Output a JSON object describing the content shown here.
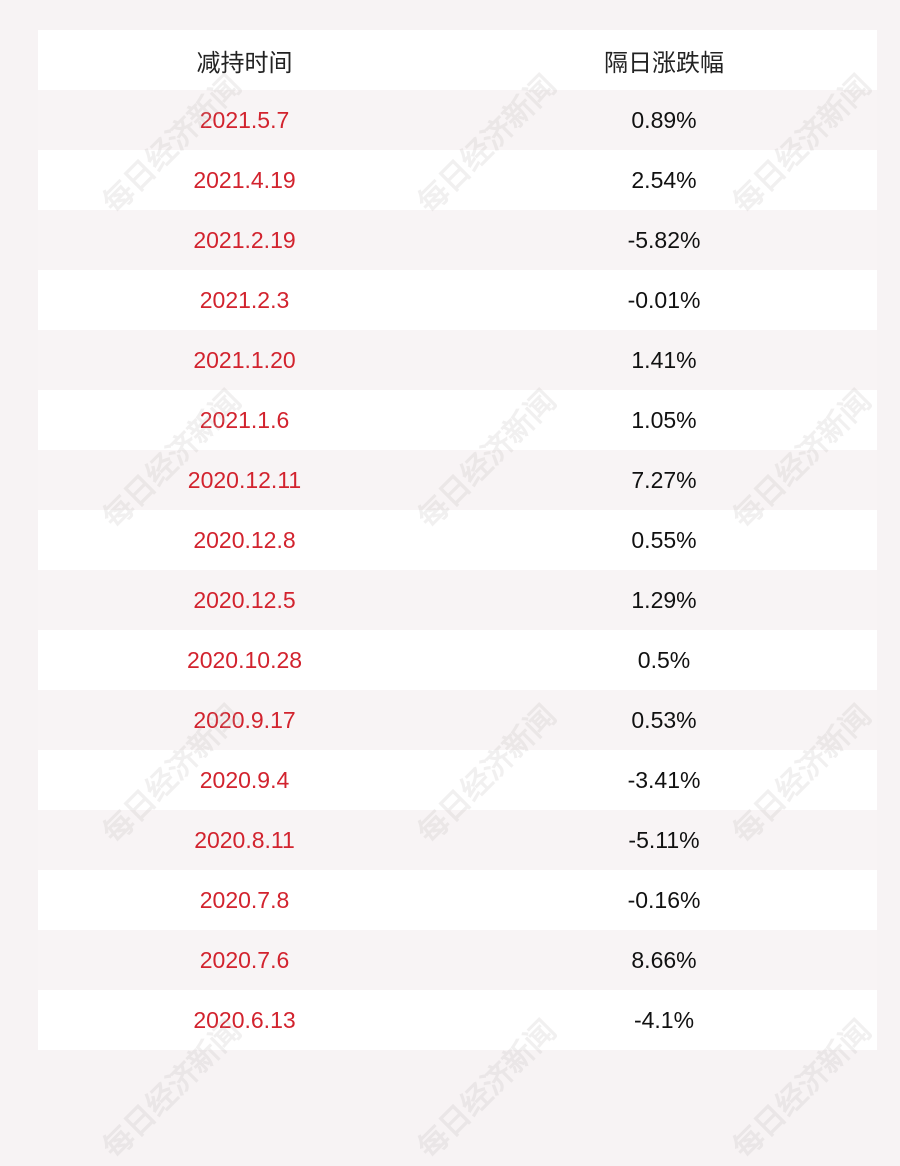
{
  "table": {
    "header": [
      "减持时间",
      "隔日涨跌幅"
    ],
    "rows": [
      [
        "2021.5.7",
        "0.89%"
      ],
      [
        "2021.4.19",
        "2.54%"
      ],
      [
        "2021.2.19",
        "-5.82%"
      ],
      [
        "2021.2.3",
        "-0.01%"
      ],
      [
        "2021.1.20",
        "1.41%"
      ],
      [
        "2021.1.6",
        "1.05%"
      ],
      [
        "2020.12.11",
        "7.27%"
      ],
      [
        "2020.12.8",
        "0.55%"
      ],
      [
        "2020.12.5",
        "1.29%"
      ],
      [
        "2020.10.28",
        "0.5%"
      ],
      [
        "2020.9.17",
        "0.53%"
      ],
      [
        "2020.9.4",
        "-3.41%"
      ],
      [
        "2020.8.11",
        "-5.11%"
      ],
      [
        "2020.7.8",
        "-0.16%"
      ],
      [
        "2020.7.6",
        "8.66%"
      ],
      [
        "2020.6.13",
        "-4.1%"
      ]
    ]
  },
  "watermark": "每日经济新闻"
}
